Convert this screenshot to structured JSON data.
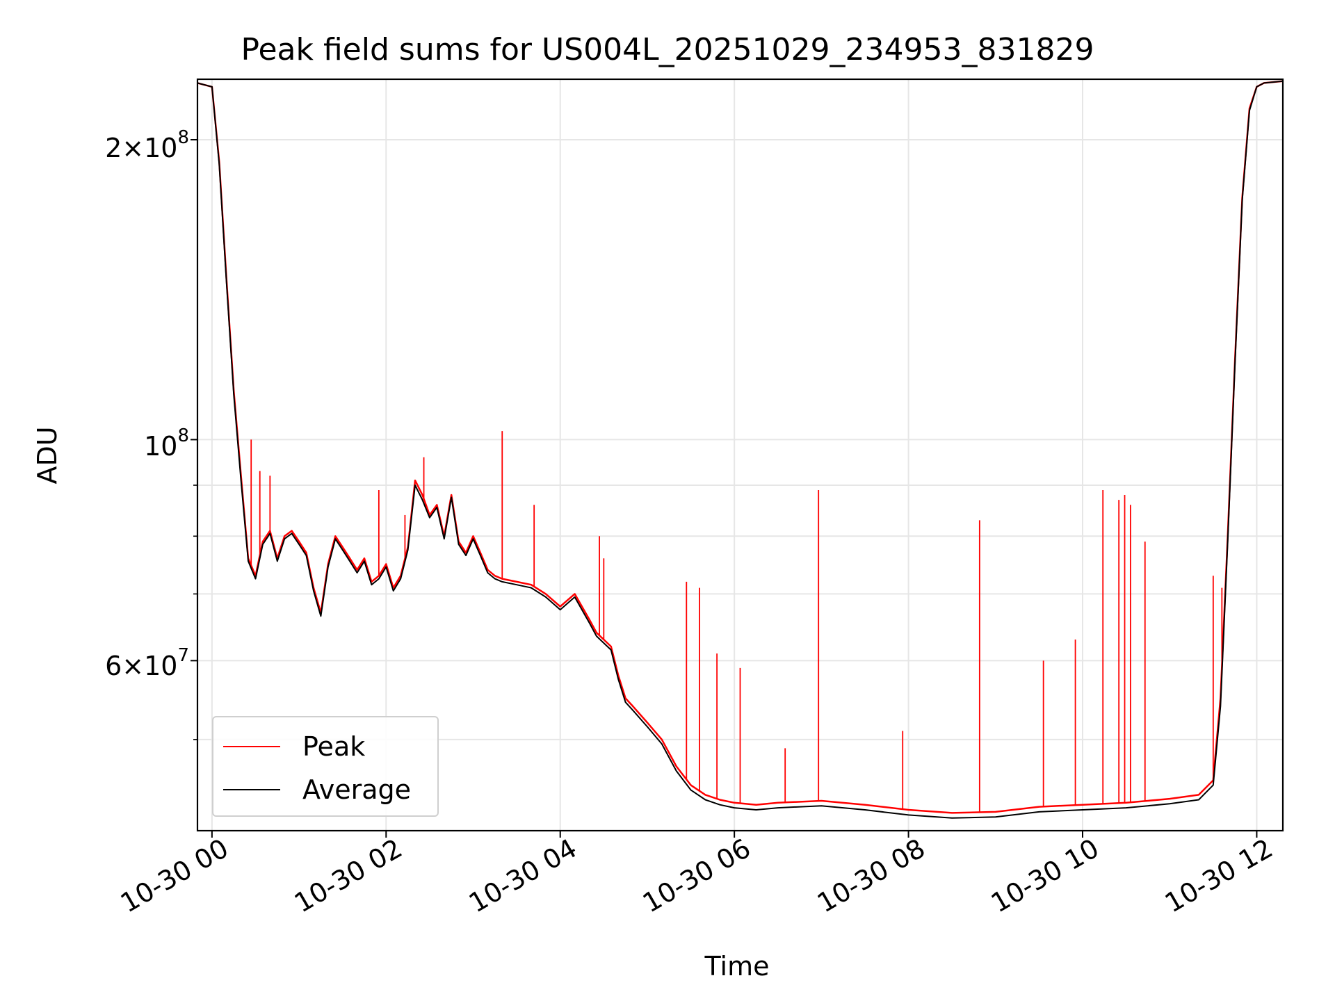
{
  "chart_data": {
    "type": "line",
    "title": "Peak field sums for US004L_20251029_234953_831829",
    "xlabel": "Time",
    "ylabel": "ADU",
    "yscale": "log",
    "grid": true,
    "legend_position": "lower-left",
    "xlim": [
      "2025-10-29 23:50",
      "2025-10-30 12:18"
    ],
    "ylim": [
      40500000,
      230000000
    ],
    "x_tick_labels": [
      "10-30 00",
      "10-30 02",
      "10-30 04",
      "10-30 06",
      "10-30 08",
      "10-30 10",
      "10-30 12"
    ],
    "y_tick_labels": [
      {
        "value": 200000000,
        "mantissa": "2",
        "base": "10",
        "exp": "8"
      },
      {
        "value": 100000000,
        "mantissa": "",
        "base": "10",
        "exp": "8"
      },
      {
        "value": 60000000,
        "mantissa": "6",
        "base": "10",
        "exp": "7"
      }
    ],
    "series": [
      {
        "name": "Peak",
        "color": "#ff0000",
        "x": [
          "2025-10-29 23:50",
          "2025-10-30 00:00",
          "2025-10-30 00:05",
          "2025-10-30 00:10",
          "2025-10-30 00:15",
          "2025-10-30 00:20",
          "2025-10-30 00:25",
          "2025-10-30 00:30",
          "2025-10-30 00:35",
          "2025-10-30 00:40",
          "2025-10-30 00:45",
          "2025-10-30 00:50",
          "2025-10-30 00:55",
          "2025-10-30 01:00",
          "2025-10-30 01:05",
          "2025-10-30 01:10",
          "2025-10-30 01:15",
          "2025-10-30 01:20",
          "2025-10-30 01:25",
          "2025-10-30 01:30",
          "2025-10-30 01:35",
          "2025-10-30 01:40",
          "2025-10-30 01:45",
          "2025-10-30 01:50",
          "2025-10-30 01:55",
          "2025-10-30 02:00",
          "2025-10-30 02:05",
          "2025-10-30 02:10",
          "2025-10-30 02:15",
          "2025-10-30 02:20",
          "2025-10-30 02:25",
          "2025-10-30 02:30",
          "2025-10-30 02:35",
          "2025-10-30 02:40",
          "2025-10-30 02:45",
          "2025-10-30 02:50",
          "2025-10-30 02:55",
          "2025-10-30 03:00",
          "2025-10-30 03:05",
          "2025-10-30 03:10",
          "2025-10-30 03:15",
          "2025-10-30 03:20",
          "2025-10-30 03:30",
          "2025-10-30 03:40",
          "2025-10-30 03:50",
          "2025-10-30 04:00",
          "2025-10-30 04:10",
          "2025-10-30 04:20",
          "2025-10-30 04:25",
          "2025-10-30 04:30",
          "2025-10-30 04:35",
          "2025-10-30 04:40",
          "2025-10-30 04:45",
          "2025-10-30 04:50",
          "2025-10-30 05:00",
          "2025-10-30 05:10",
          "2025-10-30 05:20",
          "2025-10-30 05:30",
          "2025-10-30 05:40",
          "2025-10-30 05:50",
          "2025-10-30 06:00",
          "2025-10-30 06:15",
          "2025-10-30 06:30",
          "2025-10-30 07:00",
          "2025-10-30 07:30",
          "2025-10-30 08:00",
          "2025-10-30 08:30",
          "2025-10-30 09:00",
          "2025-10-30 09:30",
          "2025-10-30 10:00",
          "2025-10-30 10:30",
          "2025-10-30 11:00",
          "2025-10-30 11:20",
          "2025-10-30 11:30",
          "2025-10-30 11:35",
          "2025-10-30 11:40",
          "2025-10-30 11:45",
          "2025-10-30 11:50",
          "2025-10-30 11:55",
          "2025-10-30 12:00",
          "2025-10-30 12:05",
          "2025-10-30 12:18"
        ],
        "y": [
          228000000,
          226000000,
          190000000,
          145000000,
          112000000,
          92000000,
          76000000,
          73000000,
          79000000,
          81000000,
          76000000,
          80000000,
          81000000,
          79000000,
          77000000,
          71000000,
          67000000,
          75000000,
          80000000,
          78000000,
          76000000,
          74000000,
          76000000,
          72000000,
          73000000,
          75000000,
          71000000,
          73000000,
          78000000,
          91000000,
          88000000,
          84000000,
          86000000,
          80000000,
          88000000,
          79000000,
          77000000,
          80000000,
          77000000,
          74000000,
          73000000,
          72500000,
          72000000,
          71500000,
          70000000,
          68000000,
          70000000,
          66000000,
          64000000,
          63000000,
          62000000,
          58000000,
          55000000,
          54000000,
          52000000,
          50000000,
          47000000,
          45000000,
          44000000,
          43500000,
          43200000,
          43000000,
          43200000,
          43400000,
          43000000,
          42500000,
          42200000,
          42300000,
          42800000,
          43000000,
          43200000,
          43600000,
          44000000,
          45500000,
          55000000,
          80000000,
          120000000,
          175000000,
          215000000,
          226000000,
          228000000,
          229000000
        ]
      },
      {
        "name": "Average",
        "color": "#000000",
        "x": [
          "2025-10-29 23:50",
          "2025-10-30 00:00",
          "2025-10-30 00:05",
          "2025-10-30 00:10",
          "2025-10-30 00:15",
          "2025-10-30 00:20",
          "2025-10-30 00:25",
          "2025-10-30 00:30",
          "2025-10-30 00:35",
          "2025-10-30 00:40",
          "2025-10-30 00:45",
          "2025-10-30 00:50",
          "2025-10-30 00:55",
          "2025-10-30 01:00",
          "2025-10-30 01:05",
          "2025-10-30 01:10",
          "2025-10-30 01:15",
          "2025-10-30 01:20",
          "2025-10-30 01:25",
          "2025-10-30 01:30",
          "2025-10-30 01:35",
          "2025-10-30 01:40",
          "2025-10-30 01:45",
          "2025-10-30 01:50",
          "2025-10-30 01:55",
          "2025-10-30 02:00",
          "2025-10-30 02:05",
          "2025-10-30 02:10",
          "2025-10-30 02:15",
          "2025-10-30 02:20",
          "2025-10-30 02:25",
          "2025-10-30 02:30",
          "2025-10-30 02:35",
          "2025-10-30 02:40",
          "2025-10-30 02:45",
          "2025-10-30 02:50",
          "2025-10-30 02:55",
          "2025-10-30 03:00",
          "2025-10-30 03:05",
          "2025-10-30 03:10",
          "2025-10-30 03:15",
          "2025-10-30 03:20",
          "2025-10-30 03:30",
          "2025-10-30 03:40",
          "2025-10-30 03:50",
          "2025-10-30 04:00",
          "2025-10-30 04:10",
          "2025-10-30 04:20",
          "2025-10-30 04:25",
          "2025-10-30 04:30",
          "2025-10-30 04:35",
          "2025-10-30 04:40",
          "2025-10-30 04:45",
          "2025-10-30 04:50",
          "2025-10-30 05:00",
          "2025-10-30 05:10",
          "2025-10-30 05:20",
          "2025-10-30 05:30",
          "2025-10-30 05:40",
          "2025-10-30 05:50",
          "2025-10-30 06:00",
          "2025-10-30 06:15",
          "2025-10-30 06:30",
          "2025-10-30 07:00",
          "2025-10-30 07:30",
          "2025-10-30 08:00",
          "2025-10-30 08:30",
          "2025-10-30 09:00",
          "2025-10-30 09:30",
          "2025-10-30 10:00",
          "2025-10-30 10:30",
          "2025-10-30 11:00",
          "2025-10-30 11:20",
          "2025-10-30 11:30",
          "2025-10-30 11:35",
          "2025-10-30 11:40",
          "2025-10-30 11:45",
          "2025-10-30 11:50",
          "2025-10-30 11:55",
          "2025-10-30 12:00",
          "2025-10-30 12:05",
          "2025-10-30 12:18"
        ],
        "y": [
          228000000,
          226000000,
          189000000,
          144000000,
          111000000,
          91000000,
          75500000,
          72500000,
          78500000,
          80500000,
          75500000,
          79500000,
          80500000,
          78500000,
          76500000,
          70500000,
          66500000,
          74500000,
          79500000,
          77500000,
          75500000,
          73500000,
          75500000,
          71500000,
          72500000,
          74500000,
          70500000,
          72500000,
          77500000,
          90000000,
          87000000,
          83500000,
          85500000,
          79500000,
          87500000,
          78500000,
          76500000,
          79500000,
          76500000,
          73500000,
          72500000,
          72000000,
          71500000,
          71000000,
          69500000,
          67500000,
          69500000,
          65500000,
          63500000,
          62500000,
          61500000,
          57500000,
          54500000,
          53500000,
          51500000,
          49500000,
          46500000,
          44500000,
          43500000,
          43000000,
          42700000,
          42500000,
          42700000,
          42900000,
          42500000,
          42000000,
          41700000,
          41800000,
          42300000,
          42500000,
          42700000,
          43100000,
          43500000,
          45000000,
          54000000,
          79000000,
          119000000,
          174000000,
          214000000,
          226000000,
          228000000,
          229000000
        ]
      }
    ],
    "spikes": {
      "x": [
        "2025-10-30 00:27",
        "2025-10-30 00:33",
        "2025-10-30 00:40",
        "2025-10-30 01:55",
        "2025-10-30 02:13",
        "2025-10-30 02:26",
        "2025-10-30 03:20",
        "2025-10-30 03:42",
        "2025-10-30 04:27",
        "2025-10-30 04:30",
        "2025-10-30 05:27",
        "2025-10-30 05:36",
        "2025-10-30 05:48",
        "2025-10-30 06:04",
        "2025-10-30 06:35",
        "2025-10-30 06:58",
        "2025-10-30 07:56",
        "2025-10-30 08:49",
        "2025-10-30 09:33",
        "2025-10-30 09:55",
        "2025-10-30 10:14",
        "2025-10-30 10:25",
        "2025-10-30 10:29",
        "2025-10-30 10:33",
        "2025-10-30 10:43",
        "2025-10-30 11:30",
        "2025-10-30 11:36"
      ],
      "y": [
        100000000,
        93000000,
        92000000,
        89000000,
        84000000,
        96000000,
        102000000,
        86000000,
        80000000,
        76000000,
        72000000,
        71000000,
        61000000,
        59000000,
        49000000,
        89000000,
        51000000,
        83000000,
        60000000,
        63000000,
        89000000,
        87000000,
        88000000,
        86000000,
        79000000,
        73000000,
        71000000
      ]
    }
  },
  "legend": {
    "peak_label": "Peak",
    "average_label": "Average"
  }
}
